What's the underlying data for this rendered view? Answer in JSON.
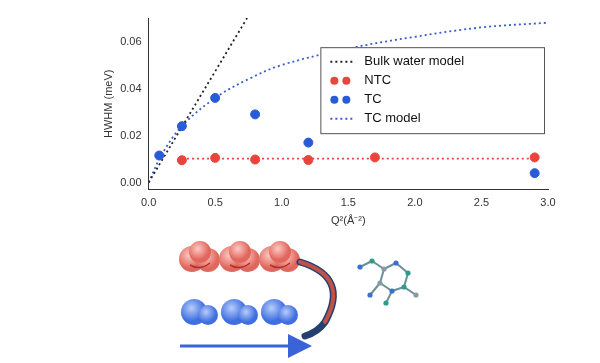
{
  "chart_data": {
    "type": "scatter",
    "xlabel": "Q²(Å⁻²)",
    "ylabel": "HWHM (meV)",
    "xlim": [
      0,
      3.0
    ],
    "xticks": [
      {
        "value": 0,
        "label": "0.0"
      },
      {
        "value": 0.5,
        "label": "0.5"
      },
      {
        "value": 1,
        "label": "1.0"
      },
      {
        "value": 1.5,
        "label": "1.5"
      },
      {
        "value": 2,
        "label": "2.0"
      },
      {
        "value": 2.5,
        "label": "2.5"
      },
      {
        "value": 3,
        "label": "3.0"
      }
    ],
    "ylim": [
      -0.003,
      0.07
    ],
    "yticks": [
      {
        "value": 0,
        "label": "0.00"
      },
      {
        "value": 0.02,
        "label": "0.02"
      },
      {
        "value": 0.04,
        "label": "0.04"
      },
      {
        "value": 0.06,
        "label": "0.06"
      }
    ],
    "grid": false,
    "legend": "right",
    "series": [
      {
        "name": "Bulk water model",
        "type": "line",
        "line_style": "dotted",
        "color": "#222222",
        "x": [
          0,
          0.74
        ],
        "values": [
          0,
          0.07
        ]
      },
      {
        "name": "NTC",
        "type": "scatter",
        "marker": "circle",
        "color": "#e8453c",
        "x": [
          0.25,
          0.5,
          0.8,
          1.2,
          1.7,
          2.9
        ],
        "values": [
          0.0095,
          0.0105,
          0.0098,
          0.0096,
          0.0107,
          0.0107
        ],
        "errors": [
          0.0006,
          0.0006,
          0.0005,
          0.0005,
          0.0006,
          0.0006
        ]
      },
      {
        "name": "TC",
        "type": "scatter",
        "marker": "circle",
        "color": "#2a5bd7",
        "x": [
          0.08,
          0.25,
          0.5,
          0.8,
          1.2,
          2.9
        ],
        "values": [
          0.0115,
          0.024,
          0.036,
          0.029,
          0.017,
          0.004
        ],
        "errors": [
          0.0007,
          0.0008,
          0.0009,
          0.0009,
          0.0007,
          0.0005
        ]
      },
      {
        "name": "TC model",
        "type": "line",
        "line_style": "dotted",
        "color": "#3a5fcd",
        "x": [
          0,
          0.1,
          0.25,
          0.5,
          0.75,
          1.0,
          1.5,
          2.0,
          2.5,
          3.0
        ],
        "values": [
          0,
          0.012,
          0.024,
          0.036,
          0.044,
          0.05,
          0.057,
          0.062,
          0.066,
          0.068
        ]
      },
      {
        "type": "line",
        "line_style": "dotted",
        "color": "#e8453c",
        "x": [
          0.25,
          2.9
        ],
        "values": [
          0.0102,
          0.0102
        ]
      }
    ]
  }
}
